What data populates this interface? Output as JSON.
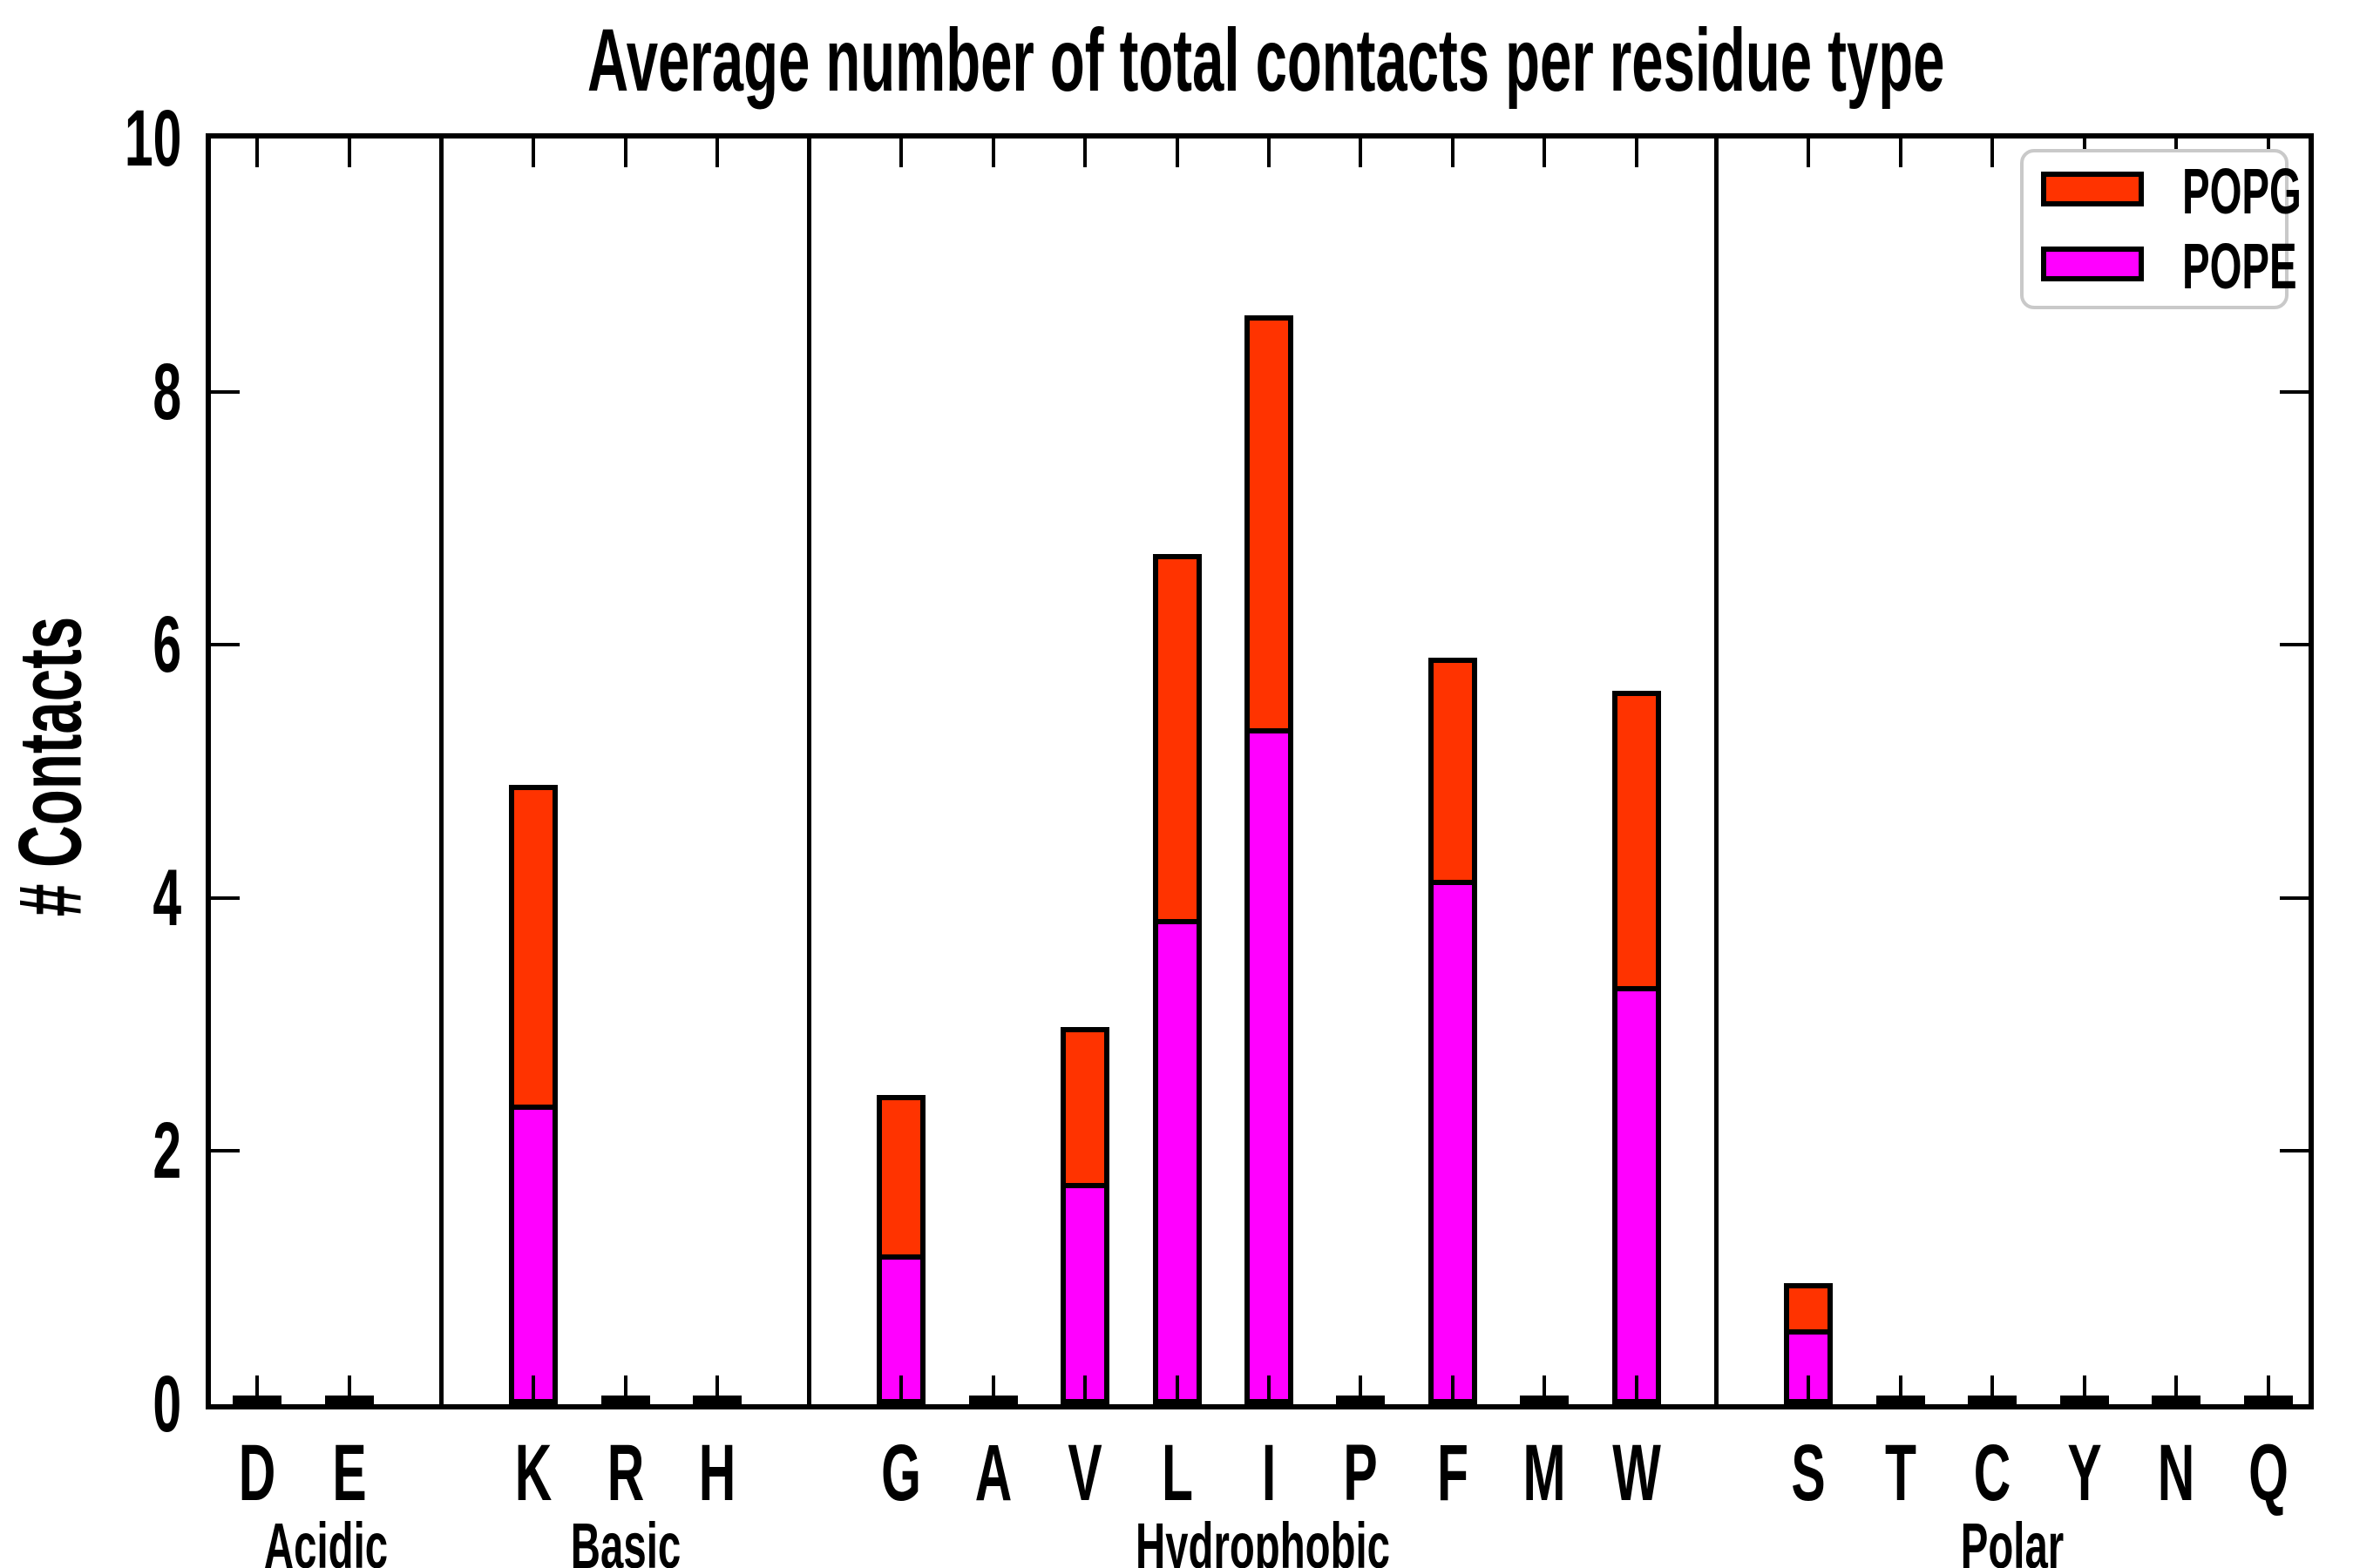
{
  "title": "Average number of total contacts per residue type",
  "axes": {
    "ylabel": "# Contacts",
    "ylim": [
      0,
      10
    ],
    "yticks": [
      0,
      2,
      4,
      6,
      8,
      10
    ]
  },
  "legend": {
    "items": [
      {
        "label": "POPG",
        "color": "#ff3300"
      },
      {
        "label": "POPE",
        "color": "#ff00ff"
      }
    ]
  },
  "chart_data": {
    "type": "bar",
    "subtype": "stacked-vertical",
    "title": "Average number of total contacts per residue type",
    "xlabel": "",
    "ylabel": "# Contacts",
    "ylim": [
      0,
      10
    ],
    "yticks": [
      0,
      2,
      4,
      6,
      8,
      10
    ],
    "grid": false,
    "legend_position": "upper right",
    "series_order_bottom_to_top": [
      "POPE",
      "POPG"
    ],
    "colors": {
      "POPE": "#ff00ff",
      "POPG": "#ff3300"
    },
    "groups": [
      {
        "label": "Acidic",
        "categories": [
          "D",
          "E"
        ],
        "series": {
          "POPE": [
            0.02,
            0.02
          ],
          "POPG": [
            0.02,
            0.02
          ]
        }
      },
      {
        "label": "Basic",
        "categories": [
          "K",
          "R",
          "H"
        ],
        "series": {
          "POPE": [
            2.35,
            0.02,
            0.02
          ],
          "POPG": [
            2.54,
            0.02,
            0.02
          ]
        }
      },
      {
        "label": "Hydrophobic",
        "categories": [
          "G",
          "A",
          "V",
          "L",
          "I",
          "P",
          "F",
          "M",
          "W"
        ],
        "series": {
          "POPE": [
            1.16,
            0.02,
            1.73,
            3.81,
            5.32,
            0.02,
            4.12,
            0.02,
            3.28
          ],
          "POPG": [
            1.28,
            0.02,
            1.25,
            2.91,
            3.28,
            0.02,
            1.78,
            0.02,
            2.36
          ]
        }
      },
      {
        "label": "Polar",
        "categories": [
          "S",
          "T",
          "C",
          "Y",
          "N",
          "Q"
        ],
        "series": {
          "POPE": [
            0.57,
            0.02,
            0.02,
            0.02,
            0.02,
            0.02
          ],
          "POPG": [
            0.39,
            0.02,
            0.02,
            0.02,
            0.02,
            0.02
          ]
        }
      }
    ]
  }
}
